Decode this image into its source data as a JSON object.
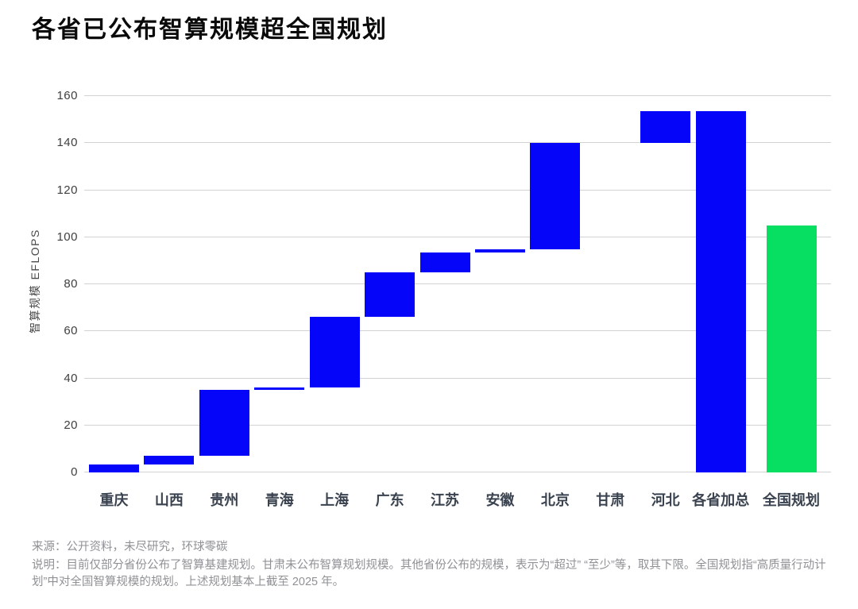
{
  "chart_data": {
    "type": "bar",
    "subtype": "waterfall",
    "title": "各省已公布智算规模超全国规划",
    "ylabel": "智算规模 EFLOPS",
    "xlabel": "",
    "ylim": [
      0,
      160
    ],
    "yticks": [
      0,
      20,
      40,
      60,
      80,
      100,
      120,
      140,
      160
    ],
    "grid": true,
    "legend": "none",
    "colors": {
      "province": "#0505fa",
      "national": "#06df62"
    },
    "categories": [
      "重庆",
      "山西",
      "贵州",
      "青海",
      "上海",
      "广东",
      "江苏",
      "安徽",
      "北京",
      "甘肃",
      "河北",
      "各省加总",
      "全国规划"
    ],
    "bars": [
      {
        "label": "重庆",
        "start": 0,
        "end": 3.5,
        "value": 3.5,
        "color": "province"
      },
      {
        "label": "山西",
        "start": 3.5,
        "end": 7,
        "value": 3.5,
        "color": "province"
      },
      {
        "label": "贵州",
        "start": 7,
        "end": 35,
        "value": 28,
        "color": "province"
      },
      {
        "label": "青海",
        "start": 35,
        "end": 36,
        "value": 1,
        "color": "province"
      },
      {
        "label": "上海",
        "start": 36,
        "end": 66,
        "value": 30,
        "color": "province"
      },
      {
        "label": "广东",
        "start": 66,
        "end": 85,
        "value": 19,
        "color": "province"
      },
      {
        "label": "江苏",
        "start": 85,
        "end": 93.5,
        "value": 8.5,
        "color": "province"
      },
      {
        "label": "安徽",
        "start": 93.5,
        "end": 95,
        "value": 1.5,
        "color": "province"
      },
      {
        "label": "北京",
        "start": 95,
        "end": 140,
        "value": 45,
        "color": "province"
      },
      {
        "label": "甘肃",
        "start": 140,
        "end": 140,
        "value": 0,
        "color": "province"
      },
      {
        "label": "河北",
        "start": 140,
        "end": 153.5,
        "value": 13.5,
        "color": "province"
      },
      {
        "label": "各省加总",
        "start": 0,
        "end": 153.5,
        "value": 153.5,
        "color": "province"
      },
      {
        "label": "全国规划",
        "start": 0,
        "end": 105,
        "value": 105,
        "color": "national"
      }
    ]
  },
  "footer": {
    "source": "来源：公开资料，未尽研究，环球零碳",
    "note": "说明：目前仅部分省份公布了智算基建规划。甘肃未公布智算规划规模。其他省份公布的规模，表示为“超过” “至少”等，取其下限。全国规划指“高质量行动计划”中对全国智算规模的规划。上述规划基本上截至 2025 年。"
  }
}
